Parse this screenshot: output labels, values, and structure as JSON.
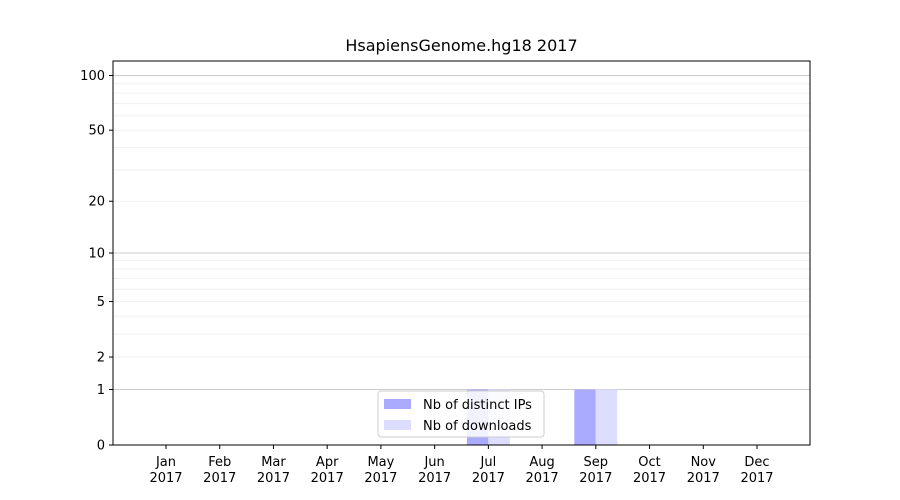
{
  "chart_data": {
    "type": "bar",
    "title": "HsapiensGenome.hg18 2017",
    "xlabel": "",
    "ylabel": "",
    "categories": [
      [
        "Jan",
        "2017"
      ],
      [
        "Feb",
        "2017"
      ],
      [
        "Mar",
        "2017"
      ],
      [
        "Apr",
        "2017"
      ],
      [
        "May",
        "2017"
      ],
      [
        "Jun",
        "2017"
      ],
      [
        "Jul",
        "2017"
      ],
      [
        "Aug",
        "2017"
      ],
      [
        "Sep",
        "2017"
      ],
      [
        "Oct",
        "2017"
      ],
      [
        "Nov",
        "2017"
      ],
      [
        "Dec",
        "2017"
      ]
    ],
    "series": [
      {
        "name": "Nb of distinct IPs",
        "values": [
          0,
          0,
          0,
          0,
          0,
          0,
          1,
          0,
          1,
          0,
          0,
          0
        ],
        "color": "#aaaaff"
      },
      {
        "name": "Nb of downloads",
        "values": [
          0,
          0,
          0,
          0,
          0,
          0,
          1,
          0,
          1,
          0,
          0,
          0
        ],
        "color": "#ddddff"
      }
    ],
    "y_scale": "symlog",
    "ylim": [
      0,
      120
    ],
    "y_ticks": [
      0,
      1,
      2,
      5,
      10,
      20,
      50,
      100
    ],
    "grid": true,
    "legend_position": "lower center"
  }
}
